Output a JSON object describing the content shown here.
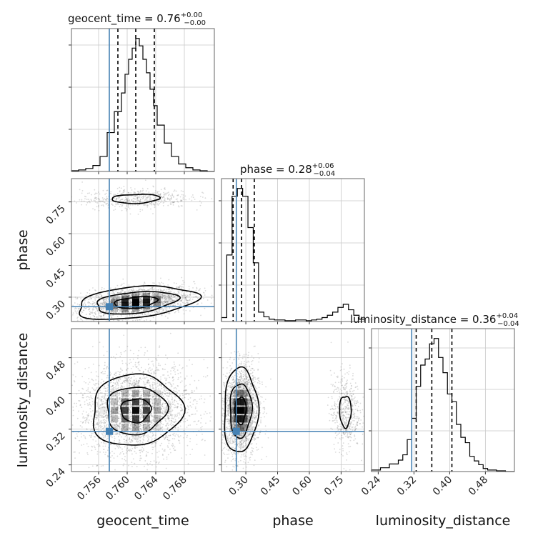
{
  "chart_data": {
    "type": "corner",
    "parameters": [
      "geocent_time",
      "phase",
      "luminosity_distance"
    ],
    "truths": {
      "geocent_time": 0.7575,
      "phase": 0.255,
      "luminosity_distance": 0.315
    },
    "colors": {
      "truth": "#4682b4",
      "hist": "#000000",
      "grid": "#c8c8c8",
      "frame": "#666666"
    },
    "axes_labels": {
      "x": [
        "geocent_time",
        "phase",
        "luminosity_distance"
      ],
      "y": [
        "phase",
        "luminosity_distance"
      ]
    },
    "ticks": {
      "geocent_time": [
        "0.756",
        "0.760",
        "0.764",
        "0.768"
      ],
      "phase": [
        "0.30",
        "0.45",
        "0.60",
        "0.75"
      ],
      "luminosity_distance": [
        "0.24",
        "0.32",
        "0.40",
        "0.48"
      ]
    },
    "ranges": {
      "geocent_time": [
        0.7522,
        0.7722
      ],
      "phase": [
        0.185,
        0.86
      ],
      "luminosity_distance": [
        0.225,
        0.545
      ]
    },
    "titles": [
      {
        "param": "geocent_time",
        "text": "geocent_time = 0.76",
        "plus": "+0.00",
        "minus": "−0.00"
      },
      {
        "param": "phase",
        "text": "phase = 0.28",
        "plus": "+0.06",
        "minus": "−0.04"
      },
      {
        "param": "luminosity_distance",
        "text": "luminosity_distance = 0.36",
        "plus": "+0.04",
        "minus": "−0.04"
      }
    ],
    "quantiles": {
      "geocent_time": [
        0.7587,
        0.7612,
        0.7638
      ],
      "phase": [
        0.24,
        0.28,
        0.34
      ],
      "luminosity_distance": [
        0.325,
        0.36,
        0.405
      ]
    },
    "histograms": {
      "geocent_time": {
        "edges": [
          0.7522,
          0.7532,
          0.7542,
          0.7552,
          0.7562,
          0.7572,
          0.7582,
          0.7592,
          0.7597,
          0.7602,
          0.7607,
          0.7612,
          0.7617,
          0.7622,
          0.7627,
          0.7632,
          0.7637,
          0.7642,
          0.7652,
          0.7662,
          0.7672,
          0.7682,
          0.7692,
          0.7702,
          0.7712,
          0.7722
        ],
        "counts": [
          1,
          2,
          4,
          8,
          20,
          52,
          80,
          105,
          130,
          150,
          165,
          178,
          168,
          150,
          132,
          110,
          88,
          62,
          38,
          20,
          10,
          5,
          2,
          1,
          0
        ]
      },
      "phase": {
        "edges": [
          0.185,
          0.21,
          0.235,
          0.26,
          0.285,
          0.31,
          0.335,
          0.36,
          0.385,
          0.41,
          0.435,
          0.46,
          0.485,
          0.51,
          0.535,
          0.56,
          0.585,
          0.61,
          0.635,
          0.66,
          0.685,
          0.71,
          0.735,
          0.76,
          0.785,
          0.81,
          0.835,
          0.86
        ],
        "counts": [
          5,
          85,
          160,
          170,
          160,
          120,
          75,
          12,
          6,
          3,
          2,
          2,
          1,
          1,
          2,
          2,
          1,
          2,
          3,
          5,
          8,
          12,
          18,
          22,
          15,
          8,
          3
        ]
      },
      "luminosity_distance": {
        "edges": [
          0.225,
          0.245,
          0.265,
          0.285,
          0.295,
          0.305,
          0.315,
          0.325,
          0.335,
          0.345,
          0.355,
          0.365,
          0.375,
          0.385,
          0.395,
          0.405,
          0.415,
          0.425,
          0.435,
          0.445,
          0.455,
          0.465,
          0.475,
          0.485,
          0.505,
          0.525,
          0.545
        ],
        "counts": [
          2,
          5,
          10,
          15,
          22,
          42,
          70,
          112,
          140,
          148,
          168,
          175,
          150,
          130,
          102,
          92,
          62,
          45,
          38,
          20,
          14,
          9,
          4,
          2,
          1,
          0
        ]
      }
    },
    "contours_2d": [
      {
        "x": "geocent_time",
        "y": "phase",
        "modes": [
          {
            "cx": 0.7612,
            "cy": 0.275,
            "sx": 0.003,
            "sy": 0.028,
            "rho": 0.35,
            "w": 0.8
          },
          {
            "cx": 0.7612,
            "cy": 0.765,
            "sx": 0.0028,
            "sy": 0.018,
            "rho": 0.15,
            "w": 0.2
          }
        ],
        "levels": [
          {
            "mode": 0,
            "scale": [
              1.0,
              1.9,
              2.8
            ]
          },
          {
            "mode": 1,
            "scale": [
              1.2
            ]
          }
        ]
      },
      {
        "x": "geocent_time",
        "y": "luminosity_distance",
        "modes": [
          {
            "cx": 0.7612,
            "cy": 0.362,
            "sx": 0.003,
            "sy": 0.038,
            "rho": 0.05,
            "w": 1.0
          }
        ],
        "levels": [
          {
            "mode": 0,
            "scale": [
              0.7,
              1.4,
              2.1
            ]
          }
        ]
      },
      {
        "x": "phase",
        "y": "luminosity_distance",
        "modes": [
          {
            "cx": 0.275,
            "cy": 0.362,
            "sx": 0.032,
            "sy": 0.038,
            "rho": 0.05,
            "w": 0.8
          },
          {
            "cx": 0.77,
            "cy": 0.36,
            "sx": 0.025,
            "sy": 0.032,
            "rho": 0.0,
            "w": 0.2
          }
        ],
        "levels": [
          {
            "mode": 0,
            "scale": [
              0.8,
              1.6,
              2.5
            ]
          },
          {
            "mode": 1,
            "scale": [
              1.1
            ]
          }
        ]
      }
    ]
  }
}
